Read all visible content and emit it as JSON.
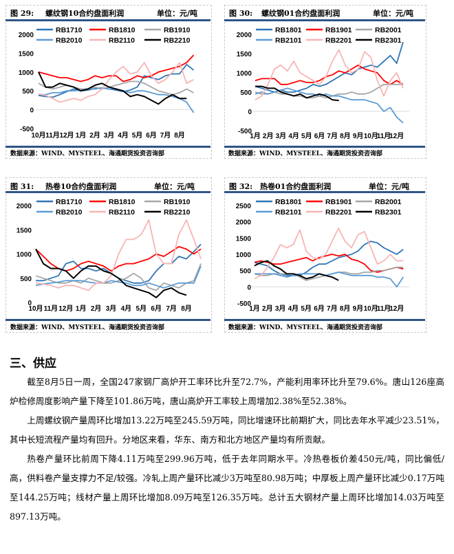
{
  "figures": [
    {
      "label": "图 29:",
      "title": "螺纹钢10合约盘面利润",
      "unit": "单位：元/吨",
      "source": "数据来源：WIND、MYSTEEL、海通期货投资咨询部"
    },
    {
      "label": "图 30:",
      "title": "螺纹钢01合约盘面利润",
      "unit": "单位：元/吨",
      "source": "数据来源：WIND、MYSTEEL、海通期货投资咨询部"
    },
    {
      "label": "图 31:",
      "title": "热卷10合约盘面利润",
      "unit": "单位：元/吨",
      "source": "数据来源：WIND、MYSTEEL、海通期货投资咨询部"
    },
    {
      "label": "图 32:",
      "title": "热卷01合约盘面利润",
      "unit": "单位：元/吨",
      "source": "数据来源：WIND、MYSTEEL、海通期货投资咨询部"
    }
  ],
  "colors": {
    "dark_blue": "#2e75b6",
    "red": "#ff0000",
    "gray": "#a6a6a6",
    "light_blue": "#5b9bd5",
    "pink": "#f8b4b4",
    "black": "#000000",
    "rule": "#2f5486"
  },
  "chart_data": [
    {
      "type": "line",
      "title": "螺纹钢10合约盘面利润",
      "ylim": [
        -500,
        2000
      ],
      "yticks": [
        2000,
        1500,
        1000,
        500,
        0,
        -500
      ],
      "xticks": [
        "10月",
        "11月",
        "12月",
        "1月",
        "2月",
        "3月",
        "4月",
        "5月",
        "6月",
        "7月",
        "8月"
      ],
      "x_step_months": 0.5,
      "legend": "top",
      "series": [
        {
          "name": "RB1710",
          "color": "#2e75b6",
          "values": [
            380,
            350,
            330,
            400,
            480,
            550,
            500,
            520,
            560,
            580,
            550,
            520,
            480,
            520,
            600,
            900,
            850,
            800,
            900,
            950,
            950,
            1200,
            1050
          ]
        },
        {
          "name": "RB1810",
          "color": "#ff0000",
          "values": [
            1000,
            950,
            900,
            850,
            850,
            800,
            750,
            800,
            900,
            850,
            900,
            900,
            750,
            800,
            900,
            850,
            900,
            1000,
            1050,
            1100,
            1150,
            1250,
            1450
          ]
        },
        {
          "name": "RB1910",
          "color": "#a6a6a6",
          "values": [
            700,
            600,
            550,
            600,
            650,
            600,
            550,
            550,
            600,
            550,
            600,
            650,
            700,
            750,
            750,
            700,
            600,
            500,
            450,
            400,
            450,
            550,
            450
          ]
        },
        {
          "name": "RB2010",
          "color": "#5b9bd5",
          "values": [
            400,
            400,
            450,
            450,
            500,
            500,
            520,
            550,
            550,
            580,
            550,
            550,
            500,
            450,
            500,
            500,
            450,
            400,
            400,
            350,
            300,
            200,
            -80
          ]
        },
        {
          "name": "RB2110",
          "color": "#f8b4b4",
          "values": [
            420,
            380,
            300,
            200,
            250,
            300,
            250,
            350,
            400,
            550,
            800,
            1000,
            1150,
            950,
            1000,
            1250,
            900,
            700,
            800,
            1000,
            1250,
            700,
            800
          ]
        },
        {
          "name": "RB2210",
          "color": "#000000",
          "values": [
            1000,
            600,
            600,
            700,
            650,
            600,
            500,
            550,
            650,
            700,
            600,
            550,
            500,
            350,
            400,
            350,
            250,
            150,
            300,
            400,
            300,
            300
          ]
        }
      ]
    },
    {
      "type": "line",
      "title": "螺纹钢01合约盘面利润",
      "ylim": [
        -500,
        2000
      ],
      "yticks": [
        2000,
        1500,
        1000,
        500,
        0,
        -500
      ],
      "xticks": [
        "1月",
        "2月",
        "3月",
        "4月",
        "5月",
        "6月",
        "7月",
        "8月",
        "9月",
        "10月",
        "11月",
        "12月"
      ],
      "x_step_months": 0.5,
      "legend": "top",
      "series": [
        {
          "name": "RB1801",
          "color": "#2e75b6",
          "values": [
            650,
            600,
            550,
            500,
            550,
            500,
            500,
            550,
            600,
            700,
            650,
            700,
            800,
            900,
            1000,
            950,
            1100,
            1150,
            1200,
            1150,
            1300,
            1450,
            1250,
            1800
          ]
        },
        {
          "name": "RB1901",
          "color": "#ff0000",
          "values": [
            800,
            850,
            850,
            850,
            700,
            700,
            750,
            800,
            750,
            750,
            800,
            900,
            950,
            1050,
            1000,
            1100,
            1200,
            1100,
            1050,
            1000,
            800,
            700,
            800,
            700
          ]
        },
        {
          "name": "RB2001",
          "color": "#a6a6a6",
          "values": [
            500,
            450,
            450,
            500,
            450,
            450,
            400,
            400,
            350,
            350,
            400,
            350,
            400,
            450,
            450,
            500,
            450,
            450,
            500,
            600,
            700,
            700,
            700,
            700
          ]
        },
        {
          "name": "RB2101",
          "color": "#5b9bd5",
          "values": [
            450,
            500,
            450,
            500,
            550,
            600,
            550,
            500,
            450,
            450,
            400,
            450,
            400,
            400,
            350,
            300,
            300,
            300,
            250,
            200,
            0,
            100,
            -150,
            -300
          ]
        },
        {
          "name": "RB2201",
          "color": "#f8b4b4",
          "values": [
            300,
            400,
            700,
            1100,
            1200,
            1050,
            1300,
            1000,
            900,
            800,
            700,
            900,
            1300,
            1600,
            1200,
            1000,
            1100,
            1550,
            1400,
            800,
            400,
            800,
            1000,
            600
          ]
        },
        {
          "name": "RB2301",
          "color": "#000000",
          "values": [
            650,
            650,
            600,
            600,
            500,
            450,
            400,
            450,
            350,
            400,
            450,
            400,
            300,
            280
          ]
        }
      ]
    },
    {
      "type": "line",
      "title": "热卷10合约盘面利润",
      "ylim": [
        0,
        2000
      ],
      "yticks": [
        2000,
        1500,
        1000,
        500,
        0
      ],
      "xticks": [
        "10月",
        "11月",
        "12月",
        "1月",
        "2月",
        "3月",
        "4月",
        "5月",
        "6月",
        "7月",
        "8月"
      ],
      "x_step_months": 0.5,
      "legend": "top",
      "series": [
        {
          "name": "RB1710",
          "color": "#2e75b6",
          "values": [
            450,
            450,
            500,
            550,
            800,
            850,
            700,
            700,
            650,
            700,
            600,
            500,
            450,
            400,
            400,
            450,
            650,
            800,
            800,
            950,
            900,
            1050,
            1200
          ]
        },
        {
          "name": "RB1810",
          "color": "#ff0000",
          "values": [
            1100,
            950,
            800,
            700,
            650,
            700,
            800,
            850,
            800,
            750,
            650,
            750,
            800,
            800,
            850,
            900,
            1000,
            950,
            1050,
            1150,
            1100,
            1000,
            1100
          ]
        },
        {
          "name": "RB1910",
          "color": "#a6a6a6",
          "values": [
            550,
            500,
            450,
            400,
            400,
            450,
            400,
            500,
            450,
            400,
            400,
            450,
            500,
            600,
            500,
            300,
            250,
            400,
            350,
            300,
            400,
            450,
            800
          ]
        },
        {
          "name": "RB2010",
          "color": "#5b9bd5",
          "values": [
            350,
            380,
            400,
            420,
            450,
            450,
            450,
            420,
            400,
            400,
            450,
            420,
            400,
            350,
            350,
            400,
            350,
            300,
            350,
            400,
            400,
            400,
            750
          ]
        },
        {
          "name": "RB2110",
          "color": "#f8b4b4",
          "values": [
            400,
            380,
            350,
            300,
            350,
            350,
            300,
            250,
            400,
            400,
            550,
            1000,
            1300,
            1300,
            1400,
            1700,
            1000,
            800,
            800,
            1400,
            1700,
            1300,
            900
          ]
        },
        {
          "name": "RB2210",
          "color": "#000000",
          "values": [
            1100,
            800,
            700,
            700,
            650,
            500,
            650,
            750,
            750,
            650,
            600,
            500,
            350,
            300,
            250,
            200,
            100,
            250,
            300,
            200,
            150
          ]
        }
      ]
    },
    {
      "type": "line",
      "title": "热卷01合约盘面利润",
      "ylim": [
        -500,
        2500
      ],
      "yticks": [
        2500,
        2000,
        1500,
        1000,
        500,
        0,
        -500
      ],
      "xticks": [
        "1月",
        "2月",
        "3月",
        "4月",
        "5月",
        "6月",
        "7月",
        "8月",
        "9月",
        "10月",
        "11月",
        "12月"
      ],
      "x_step_months": 0.5,
      "legend": "top",
      "series": [
        {
          "name": "RB1801",
          "color": "#2e75b6",
          "values": [
            750,
            700,
            650,
            500,
            400,
            350,
            350,
            350,
            450,
            600,
            700,
            700,
            800,
            900,
            950,
            1000,
            1100,
            1300,
            1400,
            1350,
            1200,
            1100,
            1000,
            1150
          ]
        },
        {
          "name": "RB1901",
          "color": "#ff0000",
          "values": [
            750,
            800,
            750,
            700,
            700,
            750,
            800,
            850,
            900,
            800,
            900,
            950,
            1000,
            950,
            1000,
            850,
            800,
            700,
            500,
            450,
            500,
            550,
            600,
            550
          ]
        },
        {
          "name": "RB2001",
          "color": "#a6a6a6",
          "values": [
            400,
            350,
            350,
            400,
            400,
            400,
            400,
            300,
            200,
            250,
            300,
            350,
            400,
            450,
            450,
            400,
            400,
            450,
            450,
            500,
            500,
            550,
            600,
            600
          ]
        },
        {
          "name": "RB2101",
          "color": "#5b9bd5",
          "values": [
            400,
            400,
            400,
            400,
            350,
            300,
            350,
            400,
            400,
            400,
            400,
            350,
            400,
            450,
            400,
            350,
            350,
            350,
            350,
            300,
            300,
            250,
            0,
            300
          ]
        },
        {
          "name": "RB2201",
          "color": "#f8b4b4",
          "values": [
            250,
            350,
            600,
            900,
            1300,
            1200,
            1300,
            1750,
            1100,
            900,
            850,
            1000,
            1400,
            1800,
            1400,
            1200,
            1600,
            1700,
            1200,
            700,
            800,
            1000,
            800,
            800
          ]
        },
        {
          "name": "RB2301",
          "color": "#000000",
          "values": [
            650,
            750,
            800,
            650,
            550,
            400,
            400,
            350,
            250,
            300,
            400,
            350,
            300,
            200
          ]
        }
      ]
    }
  ],
  "section": {
    "heading": "三、供应",
    "paragraphs": [
      "截至8月5日一周，全国247家钢厂高炉开工率环比升至72.7%，产能利用率环比升至79.6%。唐山126座高炉检修周度影响产量下降至101.86万吨，唐山高炉开工率较上周增加2.38%至52.38%。",
      "上周螺纹钢产量周环比增加13.22万吨至245.59万吨，同比增速环比前期扩大，同比去年水平减少23.51%，其中长短流程产量均有回升。分地区来看，华东、南方和北方地区产量均有所贡献。",
      "热卷产量环比前周下降4.11万吨至299.96万吨，低于去年同期水平。冷热卷板价差450元/吨，同比偏低/高，供料卷产量支撑力不足/较强。冷轧上周产量环比减少3万吨至80.98万吨；中厚板上周产量环比减少0.17万吨至144.25万吨；线材产量上周环比增加8.09万吨至126.35万吨。总计五大钢材产量上周环比增加14.03万吨至897.13万吨。"
    ]
  }
}
